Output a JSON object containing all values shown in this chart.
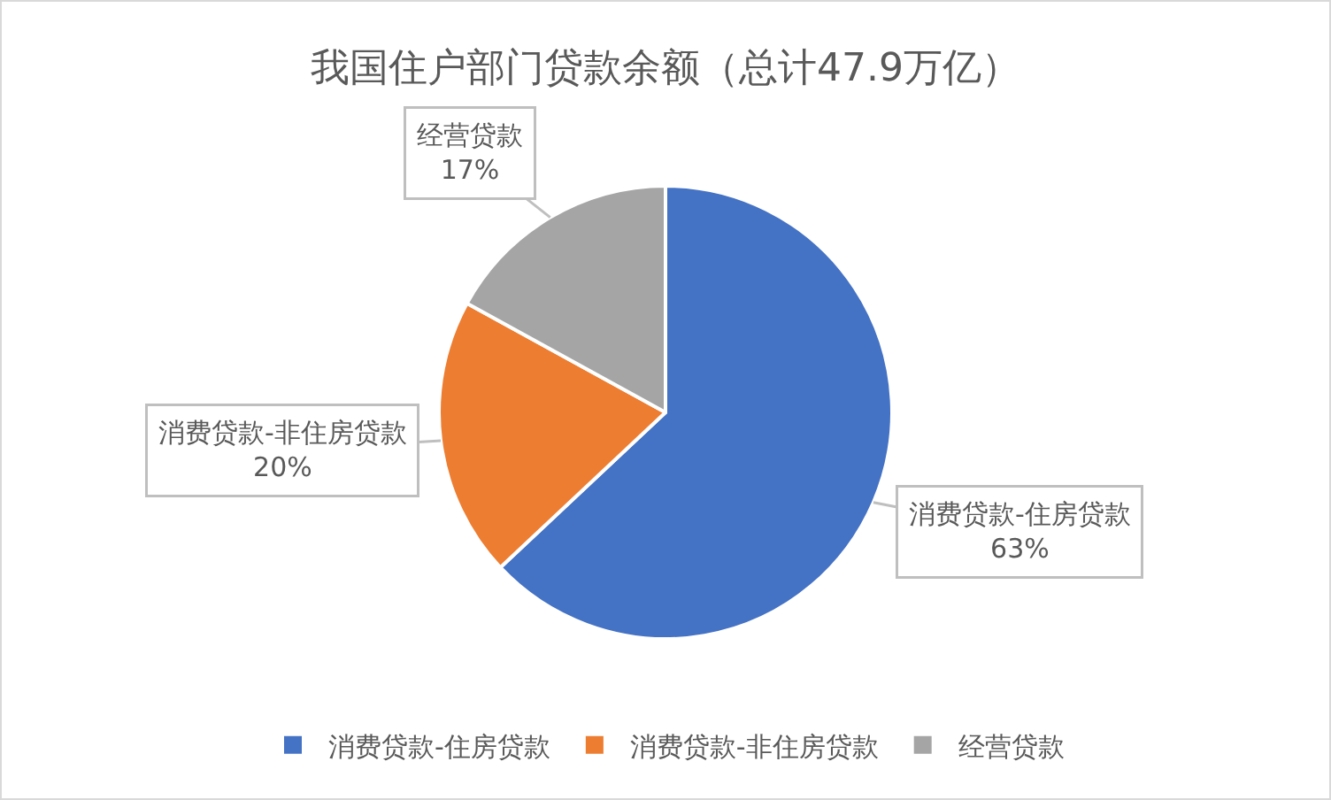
{
  "chart_data": {
    "type": "pie",
    "title": "我国住户部门贷款余额（总计47.9万亿）",
    "categories": [
      "消费贷款-住房贷款",
      "消费贷款-非住房贷款",
      "经营贷款"
    ],
    "values": [
      63,
      20,
      17
    ],
    "colors": [
      "#4472c4",
      "#ed7d31",
      "#a5a5a5"
    ],
    "value_labels": [
      "63%",
      "20%",
      "17%"
    ],
    "legend": "bottom"
  }
}
